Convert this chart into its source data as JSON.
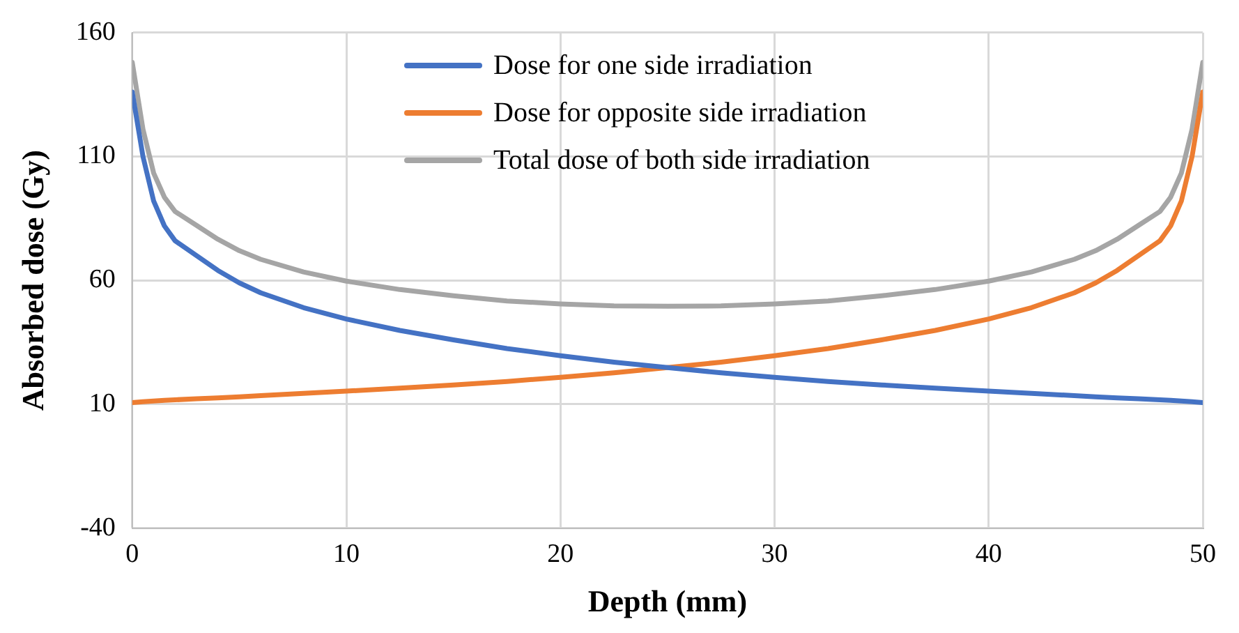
{
  "chart_data": {
    "type": "line",
    "xlabel": "Depth (mm)",
    "ylabel": "Absorbed dose (Gy)",
    "x": [
      0,
      0.5,
      1,
      1.5,
      2,
      3,
      4,
      5,
      6,
      8,
      10,
      12.5,
      15,
      17.5,
      20,
      22.5,
      25,
      27.5,
      30,
      32.5,
      35,
      37.5,
      40,
      42,
      44,
      45,
      46,
      47,
      48,
      48.5,
      49,
      49.5,
      50
    ],
    "series": [
      {
        "name": "Dose for one side irradiation",
        "color": "#4472c4",
        "values": [
          136,
          110,
          92,
          82,
          76,
          70,
          64,
          59,
          55,
          49,
          44.4,
          39.8,
          36,
          32.5,
          29.6,
          27,
          24.8,
          22.7,
          20.9,
          19.2,
          17.8,
          16.5,
          15.3,
          14.4,
          13.5,
          13,
          12.6,
          12.2,
          11.8,
          11.6,
          11.3,
          11,
          10.7
        ]
      },
      {
        "name": "Dose for opposite side irradiation",
        "color": "#ed7d31",
        "values": [
          10.7,
          11,
          11.3,
          11.6,
          11.8,
          12.2,
          12.6,
          13,
          13.5,
          14.4,
          15.3,
          16.5,
          17.8,
          19.2,
          20.9,
          22.7,
          24.8,
          27,
          29.6,
          32.5,
          36,
          39.8,
          44.4,
          49,
          55,
          59,
          64,
          70,
          76,
          82,
          92,
          110,
          136
        ]
      },
      {
        "name": "Total dose of both side irradiation",
        "color": "#a5a5a5",
        "values": [
          148,
          121,
          103.3,
          93.6,
          87.8,
          82.2,
          76.6,
          72,
          68.5,
          63.4,
          59.7,
          56.3,
          53.8,
          51.7,
          50.5,
          49.7,
          49.6,
          49.7,
          50.5,
          51.7,
          53.8,
          56.3,
          59.7,
          63.4,
          68.5,
          72,
          76.6,
          82.2,
          87.8,
          93.6,
          103.3,
          121,
          148
        ]
      }
    ],
    "xlim": [
      0,
      50
    ],
    "xticks": [
      0,
      10,
      20,
      30,
      40,
      50
    ],
    "ylim": [
      -40,
      160
    ],
    "yticks": [
      -40,
      10,
      60,
      110,
      160
    ],
    "grid": true,
    "legend": "top"
  }
}
